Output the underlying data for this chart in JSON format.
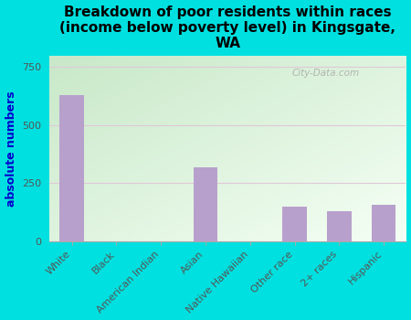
{
  "categories": [
    "White",
    "Black",
    "American Indian",
    "Asian",
    "Native Hawaiian",
    "Other race",
    "2+ races",
    "Hispanic"
  ],
  "values": [
    630,
    0,
    0,
    320,
    0,
    150,
    130,
    155
  ],
  "bar_color": "#b8a0cc",
  "title": "Breakdown of poor residents within races\n(income below poverty level) in Kingsgate,\nWA",
  "ylabel": "absolute numbers",
  "ylim": [
    0,
    800
  ],
  "yticks": [
    0,
    250,
    500,
    750
  ],
  "bg_topleft": "#c8e8c8",
  "bg_bottomright": "#f0f8f0",
  "outer_bg": "#00e0e0",
  "watermark": "City-Data.com",
  "title_fontsize": 11,
  "ylabel_fontsize": 9,
  "tick_fontsize": 8,
  "grid_color": "#e0c8d8",
  "ylabel_color": "#0000cc"
}
